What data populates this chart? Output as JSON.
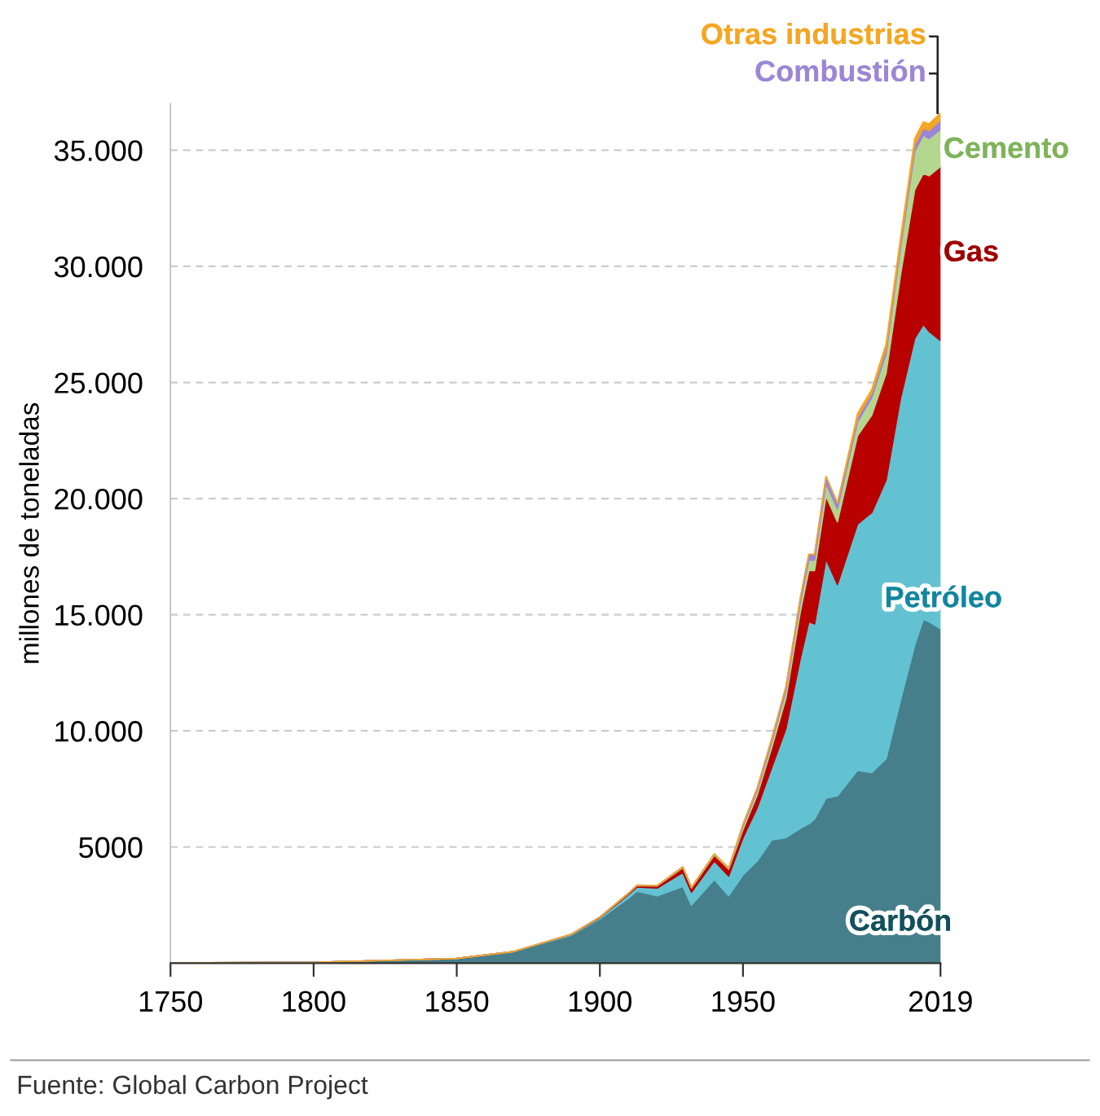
{
  "chart_data": {
    "type": "area",
    "stacked": true,
    "ylabel": "millones de toneladas",
    "x": [
      1750,
      1800,
      1850,
      1870,
      1890,
      1900,
      1910,
      1913,
      1920,
      1929,
      1932,
      1940,
      1945,
      1950,
      1955,
      1960,
      1965,
      1970,
      1973,
      1975,
      1979,
      1983,
      1990,
      1995,
      2000,
      2005,
      2010,
      2013,
      2015,
      2019
    ],
    "series": [
      {
        "name": "Carbón",
        "color": "#467f8b",
        "values": [
          10,
          30,
          200,
          500,
          1200,
          1900,
          2800,
          3100,
          2900,
          3300,
          2500,
          3600,
          2900,
          3800,
          4400,
          5300,
          5400,
          5800,
          6000,
          6200,
          7100,
          7200,
          8300,
          8200,
          8800,
          11300,
          13700,
          14800,
          14700,
          14400
        ]
      },
      {
        "name": "Petróleo",
        "color": "#63c2d1",
        "values": [
          0,
          0,
          0,
          0,
          30,
          60,
          150,
          180,
          330,
          600,
          550,
          800,
          850,
          1600,
          2300,
          3100,
          4700,
          7300,
          8700,
          8400,
          10300,
          9100,
          10600,
          11200,
          12000,
          13000,
          13200,
          12700,
          12500,
          12400
        ]
      },
      {
        "name": "Gas",
        "color": "#b80000",
        "values": [
          0,
          0,
          0,
          0,
          10,
          20,
          50,
          60,
          90,
          200,
          180,
          250,
          300,
          350,
          550,
          850,
          1300,
          2000,
          2200,
          2300,
          2700,
          2700,
          3800,
          4200,
          4600,
          5300,
          6400,
          6500,
          6700,
          7500
        ]
      },
      {
        "name": "Cemento",
        "color": "#b5d68f",
        "values": [
          0,
          0,
          0,
          0,
          0,
          0,
          10,
          20,
          20,
          40,
          30,
          50,
          40,
          130,
          180,
          250,
          320,
          400,
          450,
          450,
          550,
          550,
          600,
          750,
          850,
          1150,
          1650,
          1650,
          1600,
          1600
        ]
      },
      {
        "name": "Combustión",
        "color": "#9c86d6",
        "values": [
          0,
          0,
          0,
          0,
          0,
          0,
          0,
          0,
          0,
          0,
          0,
          0,
          0,
          90,
          120,
          150,
          180,
          200,
          250,
          250,
          300,
          250,
          200,
          200,
          250,
          250,
          300,
          300,
          350,
          400
        ]
      },
      {
        "name": "Otras industrias",
        "color": "#f5a623",
        "values": [
          0,
          0,
          0,
          0,
          0,
          0,
          0,
          0,
          0,
          0,
          0,
          0,
          0,
          0,
          0,
          0,
          0,
          0,
          0,
          0,
          0,
          0,
          150,
          160,
          170,
          200,
          250,
          270,
          280,
          300
        ]
      }
    ],
    "xlim": [
      1750,
      2019
    ],
    "xticks": [
      1750,
      1800,
      1850,
      1900,
      1950,
      2019
    ],
    "ylim": [
      0,
      37000
    ],
    "yticks": [
      5000,
      {
        "value": 10000,
        "label": "10.000"
      },
      {
        "value": 15000,
        "label": "15.000"
      },
      {
        "value": 20000,
        "label": "20.000"
      },
      {
        "value": 25000,
        "label": "25.000"
      },
      {
        "value": 30000,
        "label": "30.000"
      },
      {
        "value": 35000,
        "label": "35.000"
      }
    ],
    "grid": "y",
    "legend": false,
    "annotations": [
      "Fuente: Global Carbon Project"
    ]
  }
}
